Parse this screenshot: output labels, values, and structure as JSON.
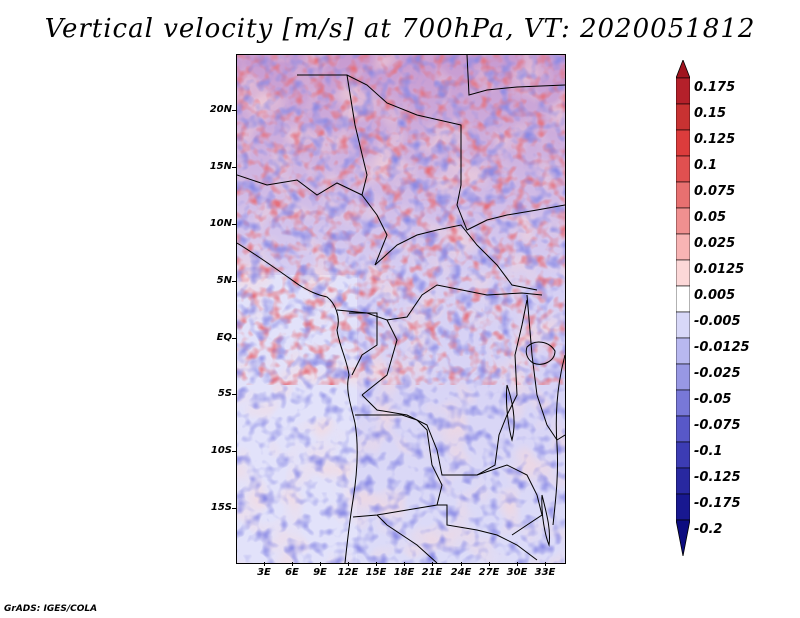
{
  "title": "Vertical velocity [m/s] at 700hPa, VT: 2020051812",
  "credit": "GrADS: IGES/COLA",
  "map": {
    "lat_labels": [
      "20N",
      "15N",
      "10N",
      "5N",
      "EQ",
      "5S",
      "10S",
      "15S"
    ],
    "lat_values": [
      20,
      15,
      10,
      5,
      0,
      -5,
      -10,
      -15
    ],
    "lon_labels": [
      "3E",
      "6E",
      "9E",
      "12E",
      "15E",
      "18E",
      "21E",
      "24E",
      "27E",
      "30E",
      "33E"
    ],
    "lon_values": [
      3,
      6,
      9,
      12,
      15,
      18,
      21,
      24,
      27,
      30,
      33
    ],
    "lat_range": [
      -20,
      25
    ],
    "lon_range": [
      0.5,
      35.5
    ]
  },
  "colorbar": {
    "labels": [
      "0.175",
      "0.15",
      "0.125",
      "0.1",
      "0.075",
      "0.05",
      "0.025",
      "0.0125",
      "0.005",
      "-0.005",
      "-0.0125",
      "-0.025",
      "-0.05",
      "-0.075",
      "-0.1",
      "-0.125",
      "-0.175",
      "-0.2"
    ],
    "colors": [
      "#a0141e",
      "#b4202a",
      "#c83232",
      "#dc3c3c",
      "#e05050",
      "#e87070",
      "#f09090",
      "#f8b4b4",
      "#fcd8d8",
      "#ffffff",
      "#d8d8f8",
      "#b8b8f0",
      "#9898e4",
      "#7878d8",
      "#5858c8",
      "#3c3cb4",
      "#2828a0",
      "#181890",
      "#0c0c80"
    ]
  },
  "field": {
    "name": "Vertical velocity",
    "units": "m/s",
    "level": "700hPa",
    "valid_time": "2020051812"
  }
}
